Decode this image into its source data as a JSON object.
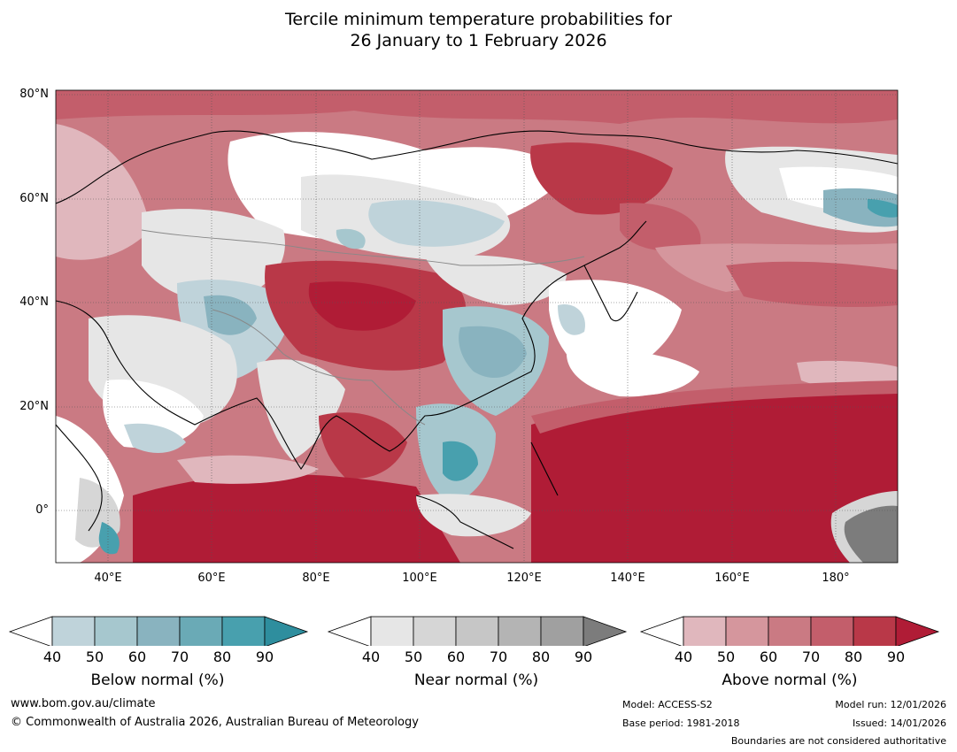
{
  "title": {
    "line1": "Tercile minimum temperature probabilities for",
    "line2": "26 January to 1 February 2026"
  },
  "map": {
    "lat_labels": [
      "80°N",
      "60°N",
      "40°N",
      "20°N",
      "0°"
    ],
    "lon_labels": [
      "40°E",
      "60°E",
      "80°E",
      "100°E",
      "120°E",
      "140°E",
      "160°E",
      "180°"
    ],
    "lon_range": [
      30,
      192
    ],
    "lat_range": [
      -10,
      80
    ],
    "gridlines": true
  },
  "colorbars": [
    {
      "label": "Below normal (%)",
      "ticks": [
        "40",
        "50",
        "60",
        "70",
        "80",
        "90"
      ],
      "colors": [
        "#ffffff",
        "#bfd3da",
        "#a6c7ce",
        "#89b3bf",
        "#6aaab6",
        "#48a0ae",
        "#2e8e9e"
      ]
    },
    {
      "label": "Near normal (%)",
      "ticks": [
        "40",
        "50",
        "60",
        "70",
        "80",
        "90"
      ],
      "colors": [
        "#ffffff",
        "#e6e6e6",
        "#d6d6d6",
        "#c6c6c6",
        "#b4b4b4",
        "#a0a0a0",
        "#7c7c7c"
      ]
    },
    {
      "label": "Above normal (%)",
      "ticks": [
        "40",
        "50",
        "60",
        "70",
        "80",
        "90"
      ],
      "colors": [
        "#ffffff",
        "#e0b7bd",
        "#d5969d",
        "#ca7a83",
        "#c35e6b",
        "#b93848",
        "#b01c36"
      ]
    }
  ],
  "footer": {
    "website": "www.bom.gov.au/climate",
    "copyright": "© Commonwealth of Australia 2026, Australian Bureau of Meteorology",
    "model": "Model: ACCESS-S2",
    "base_period": "Base period: 1981-2018",
    "model_run": "Model run: 12/01/2026",
    "issued": "Issued: 14/01/2026",
    "disclaimer": "Boundaries are not considered authoritative"
  }
}
